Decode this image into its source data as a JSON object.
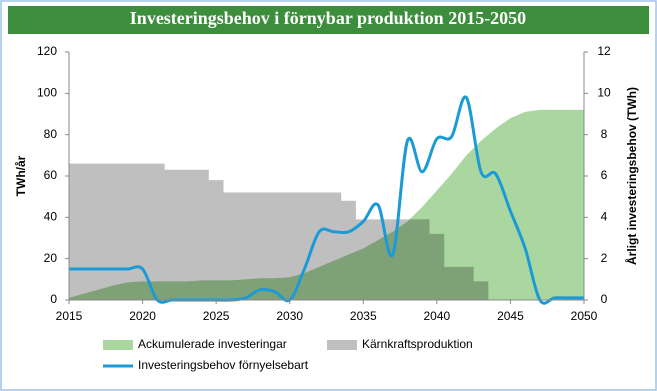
{
  "chart_data": {
    "type": "area-line",
    "title": "Investeringsbehov i förnybar produktion 2015-2050",
    "y_label": "TWh/år",
    "y2_label": "Årligt investeringsbehov (TWh)",
    "xlim": [
      2015,
      2050
    ],
    "xticks": [
      2015,
      2020,
      2025,
      2030,
      2035,
      2040,
      2045,
      2050
    ],
    "ylim": [
      0,
      120
    ],
    "yticks": [
      0,
      20,
      40,
      60,
      80,
      100,
      120
    ],
    "y2lim": [
      0,
      12
    ],
    "y2ticks": [
      0,
      2,
      4,
      6,
      8,
      10,
      12
    ],
    "series": [
      {
        "name": "Kärnkraftsproduktion",
        "color": "#bfbfbf",
        "kind": "area",
        "step": true,
        "x": [
          2015,
          2021.5,
          2024.5,
          2025.5,
          2033.5,
          2034.5,
          2039.5,
          2040.5,
          2042.5,
          2043.5
        ],
        "values": [
          66,
          63,
          58,
          52,
          48,
          39,
          32,
          16,
          9,
          0
        ]
      },
      {
        "name": "Ackumulerade investeringar",
        "color": "#aad7a0",
        "kind": "area",
        "x": [
          2015,
          2016,
          2017,
          2018,
          2019,
          2020,
          2021,
          2022,
          2023,
          2024,
          2025,
          2026,
          2027,
          2028,
          2029,
          2030,
          2031,
          2032,
          2033,
          2034,
          2035,
          2036,
          2037,
          2038,
          2039,
          2040,
          2041,
          2042,
          2043,
          2044,
          2045,
          2046,
          2047,
          2048,
          2049,
          2050
        ],
        "values": [
          1,
          3,
          5,
          7,
          8.5,
          9,
          9,
          9,
          9,
          9.5,
          9.5,
          9.5,
          10,
          10.5,
          10.5,
          11,
          13,
          16,
          19,
          22,
          25,
          29,
          33,
          38,
          45,
          53,
          61,
          70,
          77,
          83,
          88,
          91,
          92,
          92,
          92,
          92
        ]
      },
      {
        "name": "Investeringsbehov förnyelsebart",
        "color": "#1b9ad6",
        "kind": "line",
        "axis": "y2",
        "smooth": true,
        "x": [
          2015,
          2016,
          2017,
          2018,
          2019,
          2020,
          2021,
          2022,
          2023,
          2024,
          2025,
          2026,
          2027,
          2028,
          2029,
          2030,
          2031,
          2032,
          2033,
          2034,
          2035,
          2036,
          2037,
          2038,
          2039,
          2040,
          2041,
          2042,
          2043,
          2044,
          2045,
          2046,
          2047,
          2048,
          2049,
          2050
        ],
        "values": [
          1.5,
          1.5,
          1.5,
          1.5,
          1.5,
          1.5,
          0,
          0,
          0,
          0,
          0,
          0,
          0.1,
          0.5,
          0.4,
          0,
          1.5,
          3.3,
          3.3,
          3.3,
          3.8,
          4.6,
          2.2,
          7.7,
          6.2,
          7.8,
          7.9,
          9.8,
          6.2,
          6.1,
          4.3,
          2.5,
          0,
          0.1,
          0.1,
          0.1
        ]
      }
    ]
  }
}
